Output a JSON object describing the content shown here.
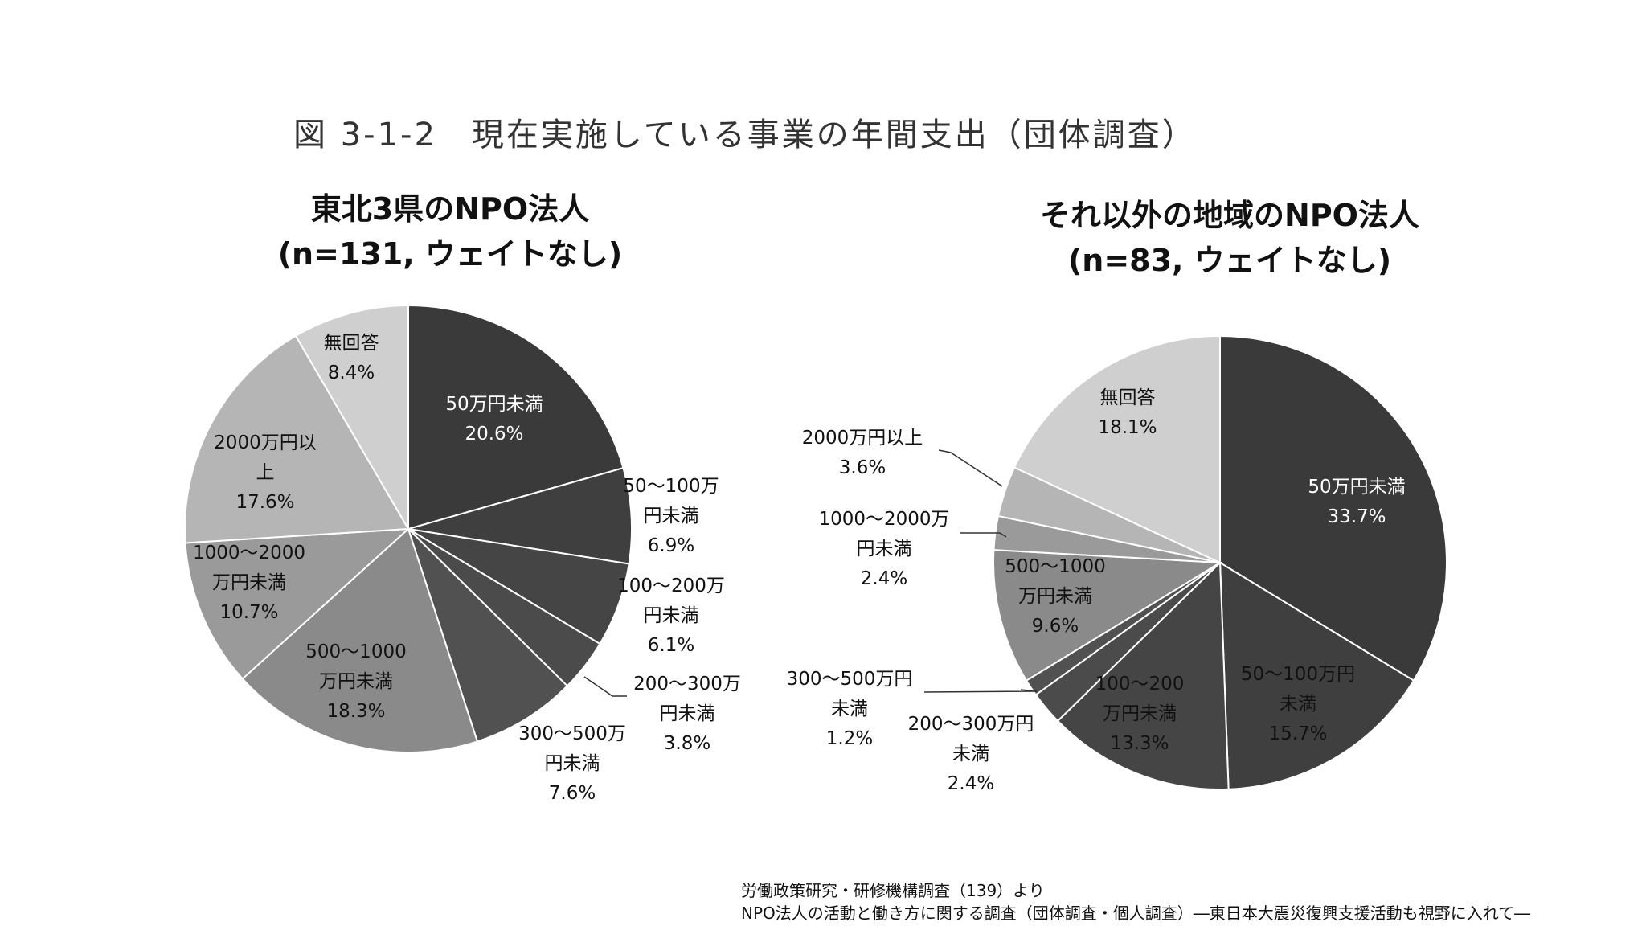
{
  "figure_title": "図 3-1-2　現在実施している事業の年間支出（団体調査）",
  "chart_data": [
    {
      "type": "pie",
      "title_line1": "東北3県のNPO法人",
      "title_line2": "(n=131, ウェイトなし)",
      "slices": [
        {
          "label": "50万円未満",
          "value": 20.6,
          "value_text": "20.6%",
          "color": "#3a3a3a"
        },
        {
          "label": "50～100万円未満",
          "value": 6.9,
          "value_text": "6.9%",
          "color": "#3f3f3f"
        },
        {
          "label": "100～200万円未満",
          "value": 6.1,
          "value_text": "6.1%",
          "color": "#454545"
        },
        {
          "label": "200～300万円未満",
          "value": 3.8,
          "value_text": "3.8%",
          "color": "#4b4b4b"
        },
        {
          "label": "300～500万円未満",
          "value": 7.6,
          "value_text": "7.6%",
          "color": "#515151"
        },
        {
          "label": "500～1000万円未満",
          "value": 18.3,
          "value_text": "18.3%",
          "color": "#8a8a8a"
        },
        {
          "label": "1000～2000万円未満",
          "value": 10.7,
          "value_text": "10.7%",
          "color": "#9a9a9a"
        },
        {
          "label": "2000万円以上",
          "value": 17.6,
          "value_text": "17.6%",
          "color": "#b5b5b5"
        },
        {
          "label": "無回答",
          "value": 8.4,
          "value_text": "8.4%",
          "color": "#cfcfcf"
        }
      ]
    },
    {
      "type": "pie",
      "title_line1": "それ以外の地域のNPO法人",
      "title_line2": "(n=83, ウェイトなし)",
      "slices": [
        {
          "label": "50万円未満",
          "value": 33.7,
          "value_text": "33.7%",
          "color": "#3a3a3a"
        },
        {
          "label": "50～100万円未満",
          "value": 15.7,
          "value_text": "15.7%",
          "color": "#3f3f3f"
        },
        {
          "label": "100～200万円未満",
          "value": 13.3,
          "value_text": "13.3%",
          "color": "#454545"
        },
        {
          "label": "200～300万円未満",
          "value": 2.4,
          "value_text": "2.4%",
          "color": "#4b4b4b"
        },
        {
          "label": "300～500万円未満",
          "value": 1.2,
          "value_text": "1.2%",
          "color": "#515151"
        },
        {
          "label": "500～1000万円未満",
          "value": 9.6,
          "value_text": "9.6%",
          "color": "#8a8a8a"
        },
        {
          "label": "1000～2000万円未満",
          "value": 2.4,
          "value_text": "2.4%",
          "color": "#9a9a9a"
        },
        {
          "label": "2000万円以上",
          "value": 3.6,
          "value_text": "3.6%",
          "color": "#b5b5b5"
        },
        {
          "label": "無回答",
          "value": 18.1,
          "value_text": "18.1%",
          "color": "#cfcfcf"
        }
      ]
    }
  ],
  "source": {
    "line1": "労働政策研究・研修機構調査（139）より",
    "line2": "NPO法人の活動と働き方に関する調査（団体調査・個人調査）―東日本大震災復興支援活動も視野に入れて―"
  }
}
